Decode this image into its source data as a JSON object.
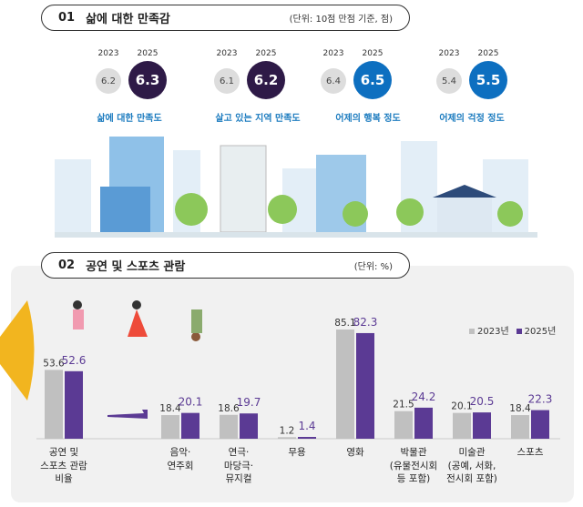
{
  "section1": {
    "num": "01",
    "title": "삶에 대한 만족감",
    "unit": "(단위: 10점 만점 기준, 점)",
    "metrics": [
      {
        "label": "삶에 대한 만족도",
        "year_old": "2023",
        "year_new": "2025",
        "v2023": "6.2",
        "v2025": "6.3",
        "color": "#2e1a47"
      },
      {
        "label": "살고 있는 지역 만족도",
        "year_old": "2023",
        "year_new": "2025",
        "v2023": "6.1",
        "v2025": "6.2",
        "color": "#2e1a47"
      },
      {
        "label": "어제의 행복 정도",
        "year_old": "2023",
        "year_new": "2025",
        "v2023": "6.4",
        "v2025": "6.5",
        "color": "#0d6fc0"
      },
      {
        "label": "어제의 걱정 정도",
        "year_old": "2023",
        "year_new": "2025",
        "v2023": "5.4",
        "v2025": "5.5",
        "color": "#0d6fc0"
      }
    ]
  },
  "section2": {
    "num": "02",
    "title": "공연 및 스포츠 관람",
    "unit": "(단위: %)"
  },
  "chart_data": {
    "type": "bar",
    "categories": [
      "공연 및\n스포츠 관람\n비율",
      "음악·\n연주회",
      "연극·\n마당극·\n뮤지컬",
      "무용",
      "영화",
      "박물관\n(유물전시회\n등 포함)",
      "미술관\n(공예, 서화,\n전시회 포함)",
      "스포츠"
    ],
    "series": [
      {
        "name": "2023년",
        "color": "#c0c0c0",
        "values": [
          53.6,
          18.4,
          18.6,
          1.2,
          85.1,
          21.5,
          20.1,
          18.4
        ]
      },
      {
        "name": "2025년",
        "color": "#5b3a94",
        "values": [
          52.6,
          20.1,
          19.7,
          1.4,
          82.3,
          24.2,
          20.5,
          22.3
        ]
      }
    ],
    "legend": "top-right",
    "grid": false
  }
}
